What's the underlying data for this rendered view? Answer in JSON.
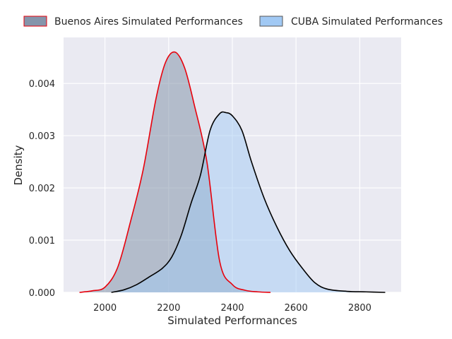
{
  "chart_data": {
    "type": "area",
    "xlabel": "Simulated Performances",
    "ylabel": "Density",
    "xlim": [
      1870,
      2930
    ],
    "ylim": [
      0,
      0.00488
    ],
    "xticks": [
      "2000",
      "2200",
      "2400",
      "2600",
      "2800"
    ],
    "yticks": [
      "0.000",
      "0.001",
      "0.002",
      "0.003",
      "0.004"
    ],
    "grid": true,
    "legend_position": "top, outside plot",
    "series": [
      {
        "name": "Buenos Aires Simulated Performances",
        "fill_color": "#8595ab",
        "line_color": "#e8000b",
        "x": [
          1920,
          1960,
          2000,
          2040,
          2080,
          2120,
          2160,
          2190,
          2220,
          2250,
          2280,
          2320,
          2360,
          2400,
          2440,
          2480,
          2520
        ],
        "y": [
          0.0,
          3e-05,
          0.0001,
          0.00048,
          0.00135,
          0.00235,
          0.0037,
          0.0044,
          0.0046,
          0.0043,
          0.0036,
          0.0025,
          0.0006,
          0.00015,
          4e-05,
          1e-05,
          0.0
        ]
      },
      {
        "name": "CUBA Simulated Performances",
        "fill_color": "#a1c9f4",
        "line_color": "#000000",
        "x": [
          2020,
          2060,
          2100,
          2140,
          2180,
          2210,
          2240,
          2270,
          2300,
          2330,
          2360,
          2380,
          2400,
          2430,
          2460,
          2500,
          2540,
          2580,
          2620,
          2660,
          2700,
          2760,
          2820,
          2880
        ],
        "y": [
          0.0,
          5e-05,
          0.00015,
          0.0003,
          0.00046,
          0.00068,
          0.0011,
          0.0017,
          0.00225,
          0.0031,
          0.00342,
          0.00344,
          0.00338,
          0.0031,
          0.0025,
          0.0018,
          0.00125,
          0.0008,
          0.00046,
          0.00018,
          6e-05,
          2e-05,
          1e-05,
          0.0
        ]
      }
    ]
  }
}
